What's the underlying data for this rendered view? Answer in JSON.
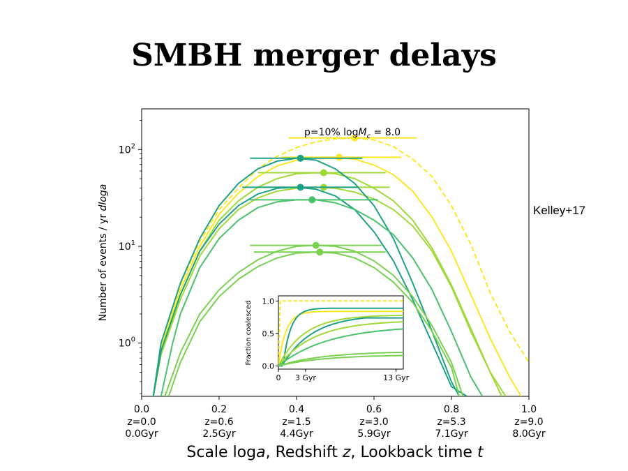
{
  "slide": {
    "title": "SMBH merger delays",
    "credit": "Kelley+17"
  },
  "chart_data": {
    "type": "line",
    "annotation": "p=10% logM_c = 8.0",
    "annotation_prefix": "p=10% log",
    "annotation_M": "M",
    "annotation_sub": "c",
    "annotation_suffix": " = 8.0",
    "xlabel_parts": [
      "Scale log",
      "a",
      ", Redshift ",
      "z",
      ", Lookback time ",
      "t"
    ],
    "ylabel_parts": [
      "Number of events / yr ",
      "dloga"
    ],
    "xlim": [
      0.0,
      1.0
    ],
    "ylim_log10": [
      -0.55,
      2.42
    ],
    "y_scale": "log",
    "x_ticks": [
      {
        "value": 0.0,
        "label": "0.0",
        "z": "z=0.0",
        "t": "0.0Gyr"
      },
      {
        "value": 0.2,
        "label": "0.2",
        "z": "z=0.6",
        "t": "2.5Gyr"
      },
      {
        "value": 0.4,
        "label": "0.4",
        "z": "z=1.5",
        "t": "4.4Gyr"
      },
      {
        "value": 0.6,
        "label": "0.6",
        "z": "z=3.0",
        "t": "5.9Gyr"
      },
      {
        "value": 0.8,
        "label": "0.8",
        "z": "z=5.3",
        "t": "7.1Gyr"
      },
      {
        "value": 1.0,
        "label": "1.0",
        "z": "z=9.0",
        "t": "8.0Gyr"
      }
    ],
    "y_ticks": [
      {
        "value": 0,
        "base": "10",
        "exp": "0"
      },
      {
        "value": 1,
        "base": "10",
        "exp": "1"
      },
      {
        "value": 2,
        "base": "10",
        "exp": "2"
      }
    ],
    "series": [
      {
        "color": "#fde725",
        "dashed": true,
        "peak_x": 0.55,
        "peak_logy": 2.12,
        "rise": 0.0,
        "err": [
          0.38,
          0.71
        ],
        "points": [
          [
            0.03,
            -0.55
          ],
          [
            0.05,
            0.0
          ],
          [
            0.1,
            0.6
          ],
          [
            0.15,
            1.05
          ],
          [
            0.2,
            1.38
          ],
          [
            0.25,
            1.6
          ],
          [
            0.3,
            1.8
          ],
          [
            0.35,
            1.93
          ],
          [
            0.4,
            2.02
          ],
          [
            0.45,
            2.08
          ],
          [
            0.5,
            2.11
          ],
          [
            0.55,
            2.12
          ],
          [
            0.6,
            2.1
          ],
          [
            0.65,
            2.03
          ],
          [
            0.7,
            1.9
          ],
          [
            0.75,
            1.72
          ],
          [
            0.8,
            1.42
          ],
          [
            0.85,
            1.02
          ],
          [
            0.9,
            0.52
          ],
          [
            0.95,
            0.12
          ],
          [
            1.0,
            -0.2
          ]
        ]
      },
      {
        "color": "#fde725",
        "dashed": false,
        "peak_x": 0.51,
        "peak_logy": 1.92,
        "err": [
          0.36,
          0.67
        ],
        "points": [
          [
            0.03,
            -0.55
          ],
          [
            0.05,
            -0.05
          ],
          [
            0.1,
            0.55
          ],
          [
            0.15,
            1.0
          ],
          [
            0.2,
            1.33
          ],
          [
            0.25,
            1.55
          ],
          [
            0.3,
            1.72
          ],
          [
            0.35,
            1.83
          ],
          [
            0.4,
            1.89
          ],
          [
            0.45,
            1.92
          ],
          [
            0.5,
            1.92
          ],
          [
            0.55,
            1.9
          ],
          [
            0.6,
            1.84
          ],
          [
            0.65,
            1.74
          ],
          [
            0.7,
            1.57
          ],
          [
            0.75,
            1.3
          ],
          [
            0.8,
            0.95
          ],
          [
            0.85,
            0.5
          ],
          [
            0.9,
            0.05
          ],
          [
            0.95,
            -0.35
          ],
          [
            0.98,
            -0.55
          ]
        ]
      },
      {
        "color": "#a0da39",
        "dashed": false,
        "peak_x": 0.47,
        "peak_logy": 1.76,
        "err": [
          0.3,
          0.63
        ],
        "points": [
          [
            0.03,
            -0.55
          ],
          [
            0.05,
            -0.1
          ],
          [
            0.1,
            0.5
          ],
          [
            0.15,
            0.95
          ],
          [
            0.2,
            1.27
          ],
          [
            0.25,
            1.47
          ],
          [
            0.3,
            1.61
          ],
          [
            0.35,
            1.7
          ],
          [
            0.4,
            1.75
          ],
          [
            0.45,
            1.76
          ],
          [
            0.5,
            1.75
          ],
          [
            0.55,
            1.7
          ],
          [
            0.6,
            1.6
          ],
          [
            0.65,
            1.47
          ],
          [
            0.7,
            1.27
          ],
          [
            0.75,
            0.98
          ],
          [
            0.8,
            0.6
          ],
          [
            0.85,
            0.15
          ],
          [
            0.9,
            -0.3
          ],
          [
            0.93,
            -0.55
          ]
        ]
      },
      {
        "color": "#a0da39",
        "dashed": false,
        "peak_x": 0.47,
        "peak_logy": 1.61,
        "err": [
          0.3,
          0.64
        ],
        "points": [
          [
            0.03,
            -0.55
          ],
          [
            0.05,
            -0.12
          ],
          [
            0.1,
            0.45
          ],
          [
            0.15,
            0.9
          ],
          [
            0.2,
            1.18
          ],
          [
            0.25,
            1.38
          ],
          [
            0.3,
            1.5
          ],
          [
            0.35,
            1.57
          ],
          [
            0.4,
            1.6
          ],
          [
            0.45,
            1.61
          ],
          [
            0.5,
            1.6
          ],
          [
            0.55,
            1.56
          ],
          [
            0.6,
            1.49
          ],
          [
            0.65,
            1.38
          ],
          [
            0.7,
            1.21
          ],
          [
            0.75,
            0.95
          ],
          [
            0.8,
            0.58
          ],
          [
            0.85,
            0.12
          ],
          [
            0.9,
            -0.3
          ],
          [
            0.94,
            -0.55
          ]
        ]
      },
      {
        "color": "#1fa187",
        "dashed": false,
        "peak_x": 0.41,
        "peak_logy": 1.91,
        "err": [
          0.28,
          0.57
        ],
        "points": [
          [
            0.03,
            -0.55
          ],
          [
            0.05,
            0.0
          ],
          [
            0.1,
            0.62
          ],
          [
            0.15,
            1.08
          ],
          [
            0.2,
            1.42
          ],
          [
            0.25,
            1.65
          ],
          [
            0.3,
            1.8
          ],
          [
            0.35,
            1.88
          ],
          [
            0.4,
            1.91
          ],
          [
            0.45,
            1.89
          ],
          [
            0.5,
            1.8
          ],
          [
            0.55,
            1.65
          ],
          [
            0.6,
            1.42
          ],
          [
            0.65,
            1.08
          ],
          [
            0.7,
            0.62
          ],
          [
            0.75,
            0.12
          ],
          [
            0.8,
            -0.4
          ],
          [
            0.82,
            -0.55
          ]
        ]
      },
      {
        "color": "#1fa187",
        "dashed": false,
        "peak_x": 0.41,
        "peak_logy": 1.61,
        "err": [
          0.26,
          0.56
        ],
        "points": [
          [
            0.03,
            -0.55
          ],
          [
            0.05,
            -0.08
          ],
          [
            0.1,
            0.5
          ],
          [
            0.15,
            0.95
          ],
          [
            0.2,
            1.23
          ],
          [
            0.25,
            1.42
          ],
          [
            0.3,
            1.54
          ],
          [
            0.35,
            1.6
          ],
          [
            0.4,
            1.61
          ],
          [
            0.45,
            1.59
          ],
          [
            0.5,
            1.52
          ],
          [
            0.55,
            1.38
          ],
          [
            0.6,
            1.15
          ],
          [
            0.65,
            0.85
          ],
          [
            0.7,
            0.45
          ],
          [
            0.75,
            -0.0
          ],
          [
            0.8,
            -0.45
          ],
          [
            0.84,
            -0.55
          ]
        ]
      },
      {
        "color": "#4ac16d",
        "dashed": false,
        "peak_x": 0.44,
        "peak_logy": 1.48,
        "err": [
          0.28,
          0.61
        ],
        "points": [
          [
            0.05,
            -0.55
          ],
          [
            0.08,
            0.0
          ],
          [
            0.1,
            0.3
          ],
          [
            0.15,
            0.78
          ],
          [
            0.2,
            1.08
          ],
          [
            0.25,
            1.27
          ],
          [
            0.3,
            1.4
          ],
          [
            0.35,
            1.46
          ],
          [
            0.4,
            1.48
          ],
          [
            0.45,
            1.48
          ],
          [
            0.5,
            1.45
          ],
          [
            0.55,
            1.38
          ],
          [
            0.6,
            1.27
          ],
          [
            0.65,
            1.12
          ],
          [
            0.7,
            0.88
          ],
          [
            0.75,
            0.55
          ],
          [
            0.8,
            0.12
          ],
          [
            0.85,
            -0.35
          ],
          [
            0.88,
            -0.55
          ]
        ]
      },
      {
        "color": "#7ad151",
        "dashed": false,
        "peak_x": 0.45,
        "peak_logy": 1.01,
        "err": [
          0.28,
          0.62
        ],
        "points": [
          [
            0.06,
            -0.55
          ],
          [
            0.1,
            -0.1
          ],
          [
            0.15,
            0.3
          ],
          [
            0.2,
            0.55
          ],
          [
            0.25,
            0.73
          ],
          [
            0.3,
            0.86
          ],
          [
            0.35,
            0.95
          ],
          [
            0.4,
            1.0
          ],
          [
            0.45,
            1.01
          ],
          [
            0.5,
            1.0
          ],
          [
            0.55,
            0.95
          ],
          [
            0.6,
            0.85
          ],
          [
            0.65,
            0.7
          ],
          [
            0.7,
            0.48
          ],
          [
            0.75,
            0.18
          ],
          [
            0.8,
            -0.2
          ],
          [
            0.83,
            -0.55
          ]
        ]
      },
      {
        "color": "#7ad151",
        "dashed": false,
        "peak_x": 0.46,
        "peak_logy": 0.94,
        "err": [
          0.29,
          0.63
        ],
        "points": [
          [
            0.07,
            -0.55
          ],
          [
            0.1,
            -0.2
          ],
          [
            0.15,
            0.22
          ],
          [
            0.2,
            0.48
          ],
          [
            0.25,
            0.66
          ],
          [
            0.3,
            0.79
          ],
          [
            0.35,
            0.88
          ],
          [
            0.4,
            0.93
          ],
          [
            0.45,
            0.94
          ],
          [
            0.5,
            0.93
          ],
          [
            0.55,
            0.88
          ],
          [
            0.6,
            0.78
          ],
          [
            0.65,
            0.63
          ],
          [
            0.7,
            0.42
          ],
          [
            0.75,
            0.12
          ],
          [
            0.8,
            -0.25
          ],
          [
            0.82,
            -0.55
          ]
        ]
      }
    ],
    "inset": {
      "ylabel": "Fraction coalesced",
      "x_ticks": [
        {
          "value": 0,
          "label": "0"
        },
        {
          "value": 3,
          "label": "3 Gyr"
        },
        {
          "value": 13,
          "label": "13 Gyr"
        }
      ],
      "y_ticks": [
        {
          "value": 0.0,
          "label": "0.0"
        },
        {
          "value": 0.5,
          "label": "0.5"
        },
        {
          "value": 1.0,
          "label": "1.0"
        }
      ],
      "xlim": [
        0,
        13.8
      ],
      "ylim": [
        -0.05,
        1.08
      ],
      "series": [
        {
          "color": "#fde725",
          "dashed": true,
          "final": 1.0,
          "k": 40
        },
        {
          "color": "#fde725",
          "dashed": false,
          "final": 0.84,
          "k": 1.2
        },
        {
          "color": "#1fa187",
          "dashed": false,
          "final": 0.89,
          "k": 0.8,
          "delay": 0.5
        },
        {
          "color": "#a0da39",
          "dashed": false,
          "final": 0.78,
          "k": 0.35
        },
        {
          "color": "#1fa187",
          "dashed": false,
          "final": 0.74,
          "k": 0.2,
          "delay": 0.4
        },
        {
          "color": "#a0da39",
          "dashed": false,
          "final": 0.68,
          "k": 0.25
        },
        {
          "color": "#4ac16d",
          "dashed": false,
          "final": 0.57,
          "k": 0.18
        },
        {
          "color": "#7ad151",
          "dashed": false,
          "final": 0.21,
          "k": 0.2
        },
        {
          "color": "#7ad151",
          "dashed": false,
          "final": 0.16,
          "k": 0.2
        }
      ]
    }
  }
}
